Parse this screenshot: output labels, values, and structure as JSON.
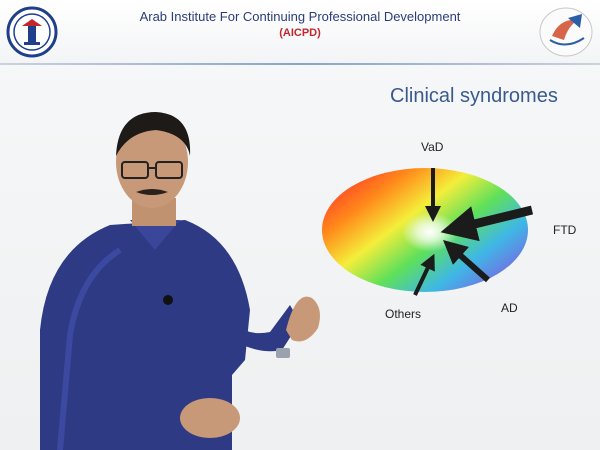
{
  "header": {
    "institute": "Arab Institute For Continuing Professional Development",
    "abbreviation": "(AICPD)"
  },
  "slide": {
    "title": "Clinical syndromes"
  },
  "diagram": {
    "labels": {
      "vad": "VaD",
      "ftd": "FTD",
      "ad": "AD",
      "others": "Others"
    }
  },
  "colors": {
    "title_blue": "#3a5a8e",
    "header_text": "#2a3d7a",
    "abbr_red": "#c0282d"
  }
}
